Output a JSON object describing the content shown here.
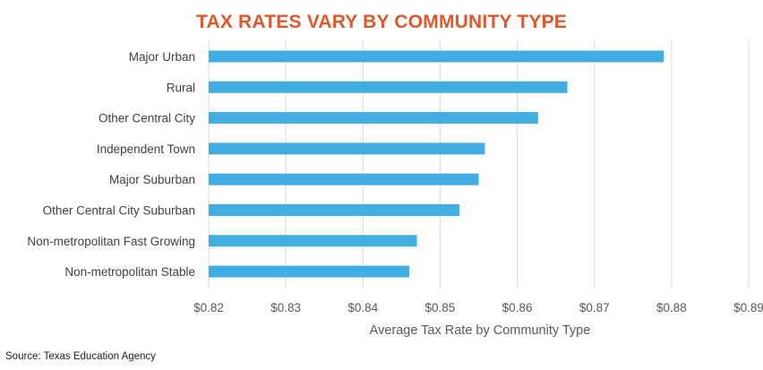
{
  "chart_data": {
    "type": "bar",
    "orientation": "horizontal",
    "title": "TAX RATES VARY BY COMMUNITY TYPE",
    "xlabel": "Average Tax Rate by Community Type",
    "ylabel": "",
    "categories": [
      "Major Urban",
      "Rural",
      "Other Central City",
      "Independent Town",
      "Major Suburban",
      "Other Central City Suburban",
      "Non-metropolitan Fast Growing",
      "Non-metropolitan Stable"
    ],
    "values": [
      0.879,
      0.8665,
      0.8627,
      0.8558,
      0.855,
      0.8525,
      0.847,
      0.846
    ],
    "xlim": [
      0.82,
      0.89
    ],
    "ticks": [
      0.82,
      0.83,
      0.84,
      0.85,
      0.86,
      0.87,
      0.88,
      0.89
    ],
    "tick_labels": [
      "$0.82",
      "$0.83",
      "$0.84",
      "$0.85",
      "$0.86",
      "$0.87",
      "$0.88",
      "$0.89"
    ],
    "grid": true,
    "bar_color": "#41ade0",
    "title_color": "#e0572a",
    "gridline_color": "#d9d9d9"
  },
  "source": "Source: Texas Education Agency"
}
